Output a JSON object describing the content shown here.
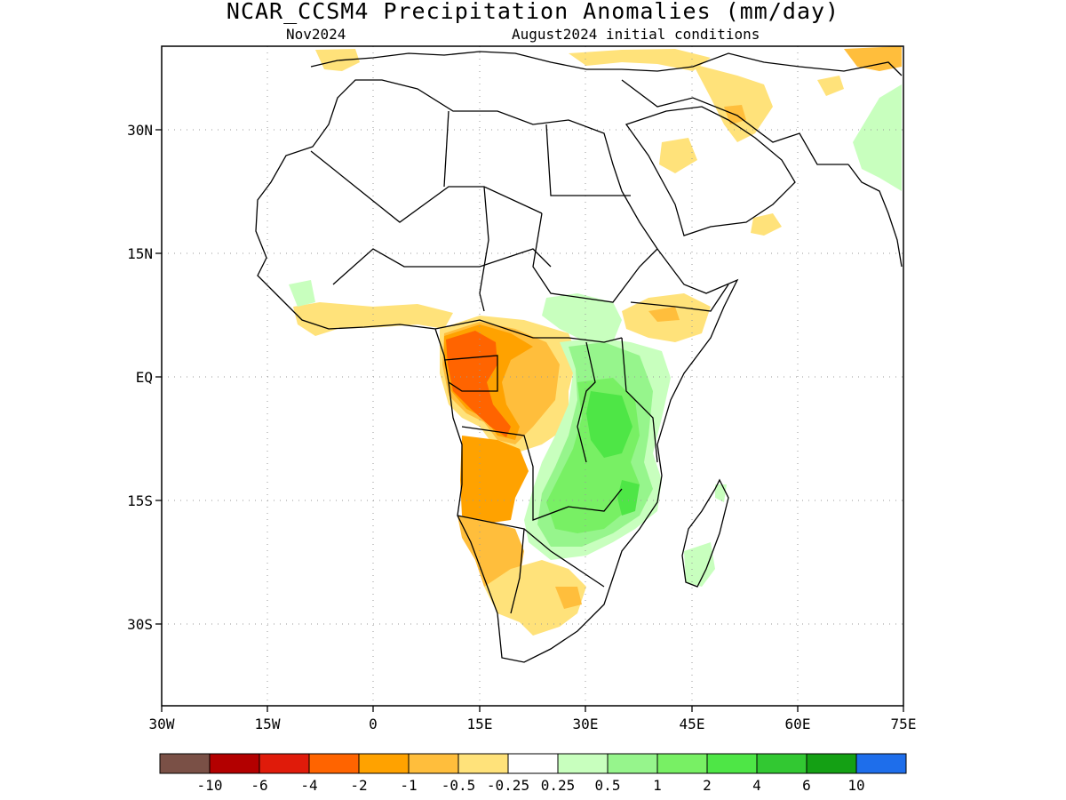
{
  "title": "NCAR_CCSM4 Precipitation Anomalies (mm/day)",
  "subtitle_left": "Nov2024",
  "subtitle_right": "August2024 initial conditions",
  "axes": {
    "x_ticks": [
      "30W",
      "15W",
      "0",
      "15E",
      "30E",
      "45E",
      "60E",
      "75E"
    ],
    "y_ticks": [
      "30N",
      "15N",
      "EQ",
      "15S",
      "30S"
    ]
  },
  "colorbar": {
    "labels": [
      "-10",
      "-6",
      "-4",
      "-2",
      "-1",
      "-0.5",
      "-0.25",
      "0.25",
      "0.5",
      "1",
      "2",
      "4",
      "6",
      "10"
    ],
    "colors": [
      "#7a5046",
      "#b30000",
      "#e01b0a",
      "#ff6400",
      "#ffa200",
      "#ffbe3c",
      "#ffe27a",
      "#ffffff",
      "#c8ffbe",
      "#96f58c",
      "#78f064",
      "#4ee646",
      "#32c832",
      "#14a014",
      "#1e6eeb"
    ]
  },
  "map_colors": {
    "dry_light": "#ffe27a",
    "dry_mid": "#ffbe3c",
    "dry_orange": "#ffa200",
    "dry_strong": "#ff6400",
    "wet_light": "#c8ffbe",
    "wet_mid": "#96f58c",
    "wet_green": "#78f064",
    "wet_strong": "#4ee646"
  }
}
